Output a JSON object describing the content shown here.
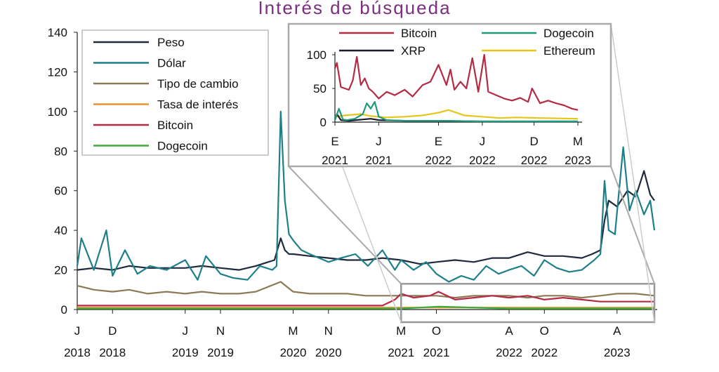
{
  "chart_data": [
    {
      "type": "line",
      "title": "Interés de búsqueda",
      "ylim": [
        0,
        140
      ],
      "yticks": [
        0,
        20,
        40,
        60,
        80,
        100,
        120,
        140
      ],
      "xlim": [
        "2018-01-07",
        "2023-05-07"
      ],
      "xticks": [
        {
          "date": "2018-01-07",
          "label": "J",
          "year": "2018"
        },
        {
          "date": "2018-05-06",
          "label": "D",
          "year": "2018"
        },
        {
          "date": "2019-01-06",
          "label": "J",
          "year": "2019"
        },
        {
          "date": "2019-05-05",
          "label": "N",
          "year": "2019"
        },
        {
          "date": "2020-01-05",
          "label": "M",
          "year": "2020"
        },
        {
          "date": "2020-05-03",
          "label": "N",
          "year": "2020"
        },
        {
          "date": "2021-01-03",
          "label": "M",
          "year": "2021"
        },
        {
          "date": "2021-05-02",
          "label": "O",
          "year": "2021"
        },
        {
          "date": "2022-01-02",
          "label": "A",
          "year": "2022"
        },
        {
          "date": "2022-05-01",
          "label": "O",
          "year": "2022"
        },
        {
          "date": "2023-01-01",
          "label": "A",
          "year": "2023"
        }
      ],
      "legend_position": "top-left",
      "series": [
        {
          "name": "Peso",
          "color": "#1e2a3d",
          "x": [
            "2018-01-07",
            "2018-03-04",
            "2018-05-06",
            "2018-07-01",
            "2018-09-02",
            "2018-11-04",
            "2019-01-06",
            "2019-03-03",
            "2019-05-05",
            "2019-07-07",
            "2019-09-01",
            "2019-11-03",
            "2019-11-24",
            "2019-12-08",
            "2019-12-22",
            "2020-01-05",
            "2020-03-01",
            "2020-05-03",
            "2020-07-05",
            "2020-09-06",
            "2020-11-01",
            "2021-01-03",
            "2021-03-07",
            "2021-05-02",
            "2021-07-04",
            "2021-09-05",
            "2021-11-07",
            "2022-01-02",
            "2022-03-06",
            "2022-05-01",
            "2022-07-03",
            "2022-09-04",
            "2022-10-09",
            "2022-11-06",
            "2022-11-20",
            "2022-12-04",
            "2023-01-01",
            "2023-02-05",
            "2023-03-05",
            "2023-04-02",
            "2023-04-23",
            "2023-05-07"
          ],
          "y": [
            20,
            21,
            20,
            22,
            21,
            21,
            21,
            22,
            21,
            20,
            22,
            25,
            36,
            30,
            28,
            28,
            27,
            26,
            25,
            25,
            26,
            25,
            23,
            24,
            25,
            24,
            26,
            26,
            29,
            27,
            27,
            26,
            28,
            30,
            45,
            55,
            52,
            60,
            57,
            70,
            58,
            55
          ]
        },
        {
          "name": "Dólar",
          "color": "#1e7f88",
          "x": [
            "2018-01-07",
            "2018-01-21",
            "2018-03-04",
            "2018-04-15",
            "2018-05-06",
            "2018-06-17",
            "2018-07-29",
            "2018-09-09",
            "2018-11-04",
            "2019-01-06",
            "2019-02-17",
            "2019-03-17",
            "2019-05-05",
            "2019-06-16",
            "2019-08-04",
            "2019-09-15",
            "2019-10-27",
            "2019-11-10",
            "2019-11-24",
            "2019-12-08",
            "2019-12-22",
            "2020-01-05",
            "2020-02-02",
            "2020-03-01",
            "2020-05-03",
            "2020-06-14",
            "2020-08-02",
            "2020-09-13",
            "2020-11-01",
            "2020-12-13",
            "2021-01-03",
            "2021-02-14",
            "2021-03-28",
            "2021-05-02",
            "2021-06-13",
            "2021-07-25",
            "2021-09-05",
            "2021-10-17",
            "2021-11-28",
            "2022-01-02",
            "2022-02-13",
            "2022-03-27",
            "2022-05-01",
            "2022-06-12",
            "2022-07-24",
            "2022-09-04",
            "2022-10-16",
            "2022-11-06",
            "2022-11-20",
            "2022-12-04",
            "2022-12-25",
            "2023-01-22",
            "2023-02-12",
            "2023-03-05",
            "2023-04-02",
            "2023-04-23",
            "2023-05-07"
          ],
          "y": [
            22,
            36,
            20,
            40,
            17,
            30,
            18,
            22,
            20,
            25,
            15,
            27,
            18,
            16,
            15,
            22,
            20,
            22,
            100,
            55,
            38,
            35,
            30,
            28,
            24,
            26,
            28,
            22,
            30,
            20,
            25,
            20,
            24,
            18,
            14,
            17,
            15,
            22,
            18,
            20,
            22,
            17,
            25,
            21,
            19,
            20,
            25,
            28,
            65,
            40,
            38,
            82,
            50,
            60,
            48,
            55,
            40
          ]
        },
        {
          "name": "Tipo de cambio",
          "color": "#8b7a55",
          "x": [
            "2018-01-07",
            "2018-03-04",
            "2018-05-06",
            "2018-07-01",
            "2018-09-02",
            "2018-11-04",
            "2019-01-06",
            "2019-03-03",
            "2019-05-05",
            "2019-07-07",
            "2019-09-01",
            "2019-11-24",
            "2020-01-05",
            "2020-03-01",
            "2020-05-03",
            "2020-07-05",
            "2020-09-06",
            "2020-11-01",
            "2021-01-03",
            "2021-03-07",
            "2021-05-02",
            "2021-07-04",
            "2021-09-05",
            "2021-11-07",
            "2022-01-02",
            "2022-03-06",
            "2022-05-01",
            "2022-07-03",
            "2022-09-04",
            "2022-11-06",
            "2023-01-01",
            "2023-03-05",
            "2023-05-07"
          ],
          "y": [
            12,
            10,
            9,
            10,
            8,
            9,
            8,
            9,
            8,
            8,
            9,
            14,
            9,
            8,
            8,
            8,
            7,
            7,
            7,
            7,
            7,
            6,
            7,
            7,
            7,
            6,
            7,
            7,
            6,
            7,
            8,
            8,
            7
          ]
        },
        {
          "name": "Tasa de interés",
          "color": "#e8962c",
          "x": [
            "2018-01-07",
            "2019-01-06",
            "2020-01-05",
            "2021-01-03",
            "2022-01-02",
            "2023-01-01",
            "2023-05-07"
          ],
          "y": [
            1,
            1,
            1,
            1,
            1,
            1,
            1
          ]
        },
        {
          "name": "Bitcoin",
          "color": "#b32b45",
          "x": [
            "2018-01-07",
            "2018-06-03",
            "2019-01-06",
            "2019-06-02",
            "2020-01-05",
            "2020-06-07",
            "2020-11-01",
            "2020-12-13",
            "2021-01-03",
            "2021-02-14",
            "2021-04-11",
            "2021-05-09",
            "2021-07-04",
            "2021-09-05",
            "2021-11-07",
            "2022-01-02",
            "2022-03-06",
            "2022-05-01",
            "2022-07-03",
            "2022-09-04",
            "2022-11-06",
            "2023-01-01",
            "2023-03-05",
            "2023-05-07"
          ],
          "y": [
            2,
            2,
            2,
            2,
            2,
            2,
            2,
            5,
            8,
            6,
            7,
            9,
            5,
            6,
            7,
            6,
            7,
            5,
            6,
            5,
            4,
            4,
            4,
            4
          ]
        },
        {
          "name": "Dogecoin",
          "color": "#3fa93a",
          "x": [
            "2018-01-07",
            "2019-01-06",
            "2020-01-05",
            "2021-01-03",
            "2021-05-09",
            "2022-01-02",
            "2023-01-01",
            "2023-05-07"
          ],
          "y": [
            0.5,
            0.5,
            0.5,
            0.5,
            1.5,
            0.5,
            0.5,
            0.5
          ]
        }
      ]
    },
    {
      "type": "line",
      "ylim": [
        0,
        100
      ],
      "yticks": [
        0,
        50,
        100
      ],
      "xlim": [
        "2021-01-03",
        "2023-05-07"
      ],
      "xticks": [
        {
          "date": "2021-01-03",
          "label": "E",
          "year": "2021"
        },
        {
          "date": "2021-06-06",
          "label": "J",
          "year": "2021"
        },
        {
          "date": "2022-01-02",
          "label": "E",
          "year": "2022"
        },
        {
          "date": "2022-06-05",
          "label": "J",
          "year": "2022"
        },
        {
          "date": "2022-12-04",
          "label": "D",
          "year": "2022"
        },
        {
          "date": "2023-05-07",
          "label": "M",
          "year": "2023"
        }
      ],
      "legend_position": "top",
      "series": [
        {
          "name": "Bitcoin",
          "color": "#b32b45",
          "x": [
            "2021-01-03",
            "2021-01-10",
            "2021-01-24",
            "2021-02-07",
            "2021-02-21",
            "2021-03-07",
            "2021-03-21",
            "2021-04-04",
            "2021-04-18",
            "2021-05-02",
            "2021-05-16",
            "2021-06-06",
            "2021-07-04",
            "2021-08-01",
            "2021-09-05",
            "2021-10-03",
            "2021-11-07",
            "2021-12-05",
            "2022-01-02",
            "2022-01-30",
            "2022-02-13",
            "2022-02-27",
            "2022-03-20",
            "2022-04-10",
            "2022-05-01",
            "2022-05-22",
            "2022-06-12",
            "2022-06-26",
            "2022-07-24",
            "2022-08-21",
            "2022-09-18",
            "2022-10-16",
            "2022-11-13",
            "2022-11-27",
            "2022-12-25",
            "2023-01-22",
            "2023-02-19",
            "2023-03-19",
            "2023-04-16",
            "2023-05-07"
          ],
          "y": [
            80,
            88,
            52,
            50,
            48,
            62,
            97,
            55,
            65,
            50,
            45,
            35,
            45,
            40,
            48,
            38,
            55,
            60,
            85,
            55,
            78,
            48,
            60,
            50,
            95,
            45,
            100,
            45,
            40,
            35,
            32,
            36,
            30,
            50,
            28,
            32,
            28,
            25,
            20,
            18
          ]
        },
        {
          "name": "Dogecoin",
          "color": "#1f9a7a",
          "x": [
            "2021-01-03",
            "2021-01-17",
            "2021-01-31",
            "2021-02-14",
            "2021-03-14",
            "2021-04-11",
            "2021-04-25",
            "2021-05-09",
            "2021-05-23",
            "2021-06-06",
            "2021-07-04",
            "2021-09-05",
            "2022-01-02",
            "2022-06-05",
            "2023-01-01",
            "2023-05-07"
          ],
          "y": [
            3,
            20,
            4,
            3,
            5,
            12,
            28,
            20,
            30,
            8,
            3,
            2,
            2,
            1,
            1,
            1
          ]
        },
        {
          "name": "XRP",
          "color": "#1a1a2e",
          "x": [
            "2021-01-03",
            "2021-01-10",
            "2021-01-24",
            "2021-02-21",
            "2021-04-11",
            "2021-05-09",
            "2021-06-06",
            "2021-09-05",
            "2022-01-02",
            "2022-06-05",
            "2023-01-01",
            "2023-05-07"
          ],
          "y": [
            4,
            12,
            3,
            2,
            4,
            5,
            3,
            2,
            2,
            1,
            1,
            1
          ]
        },
        {
          "name": "Ethereum",
          "color": "#e6c619",
          "x": [
            "2021-01-03",
            "2021-02-07",
            "2021-04-04",
            "2021-05-09",
            "2021-07-04",
            "2021-09-05",
            "2021-11-07",
            "2022-01-02",
            "2022-02-06",
            "2022-04-03",
            "2022-06-05",
            "2022-08-07",
            "2022-10-02",
            "2023-01-01",
            "2023-05-07"
          ],
          "y": [
            8,
            10,
            12,
            9,
            7,
            8,
            10,
            14,
            18,
            10,
            8,
            6,
            7,
            6,
            5
          ]
        }
      ]
    }
  ]
}
